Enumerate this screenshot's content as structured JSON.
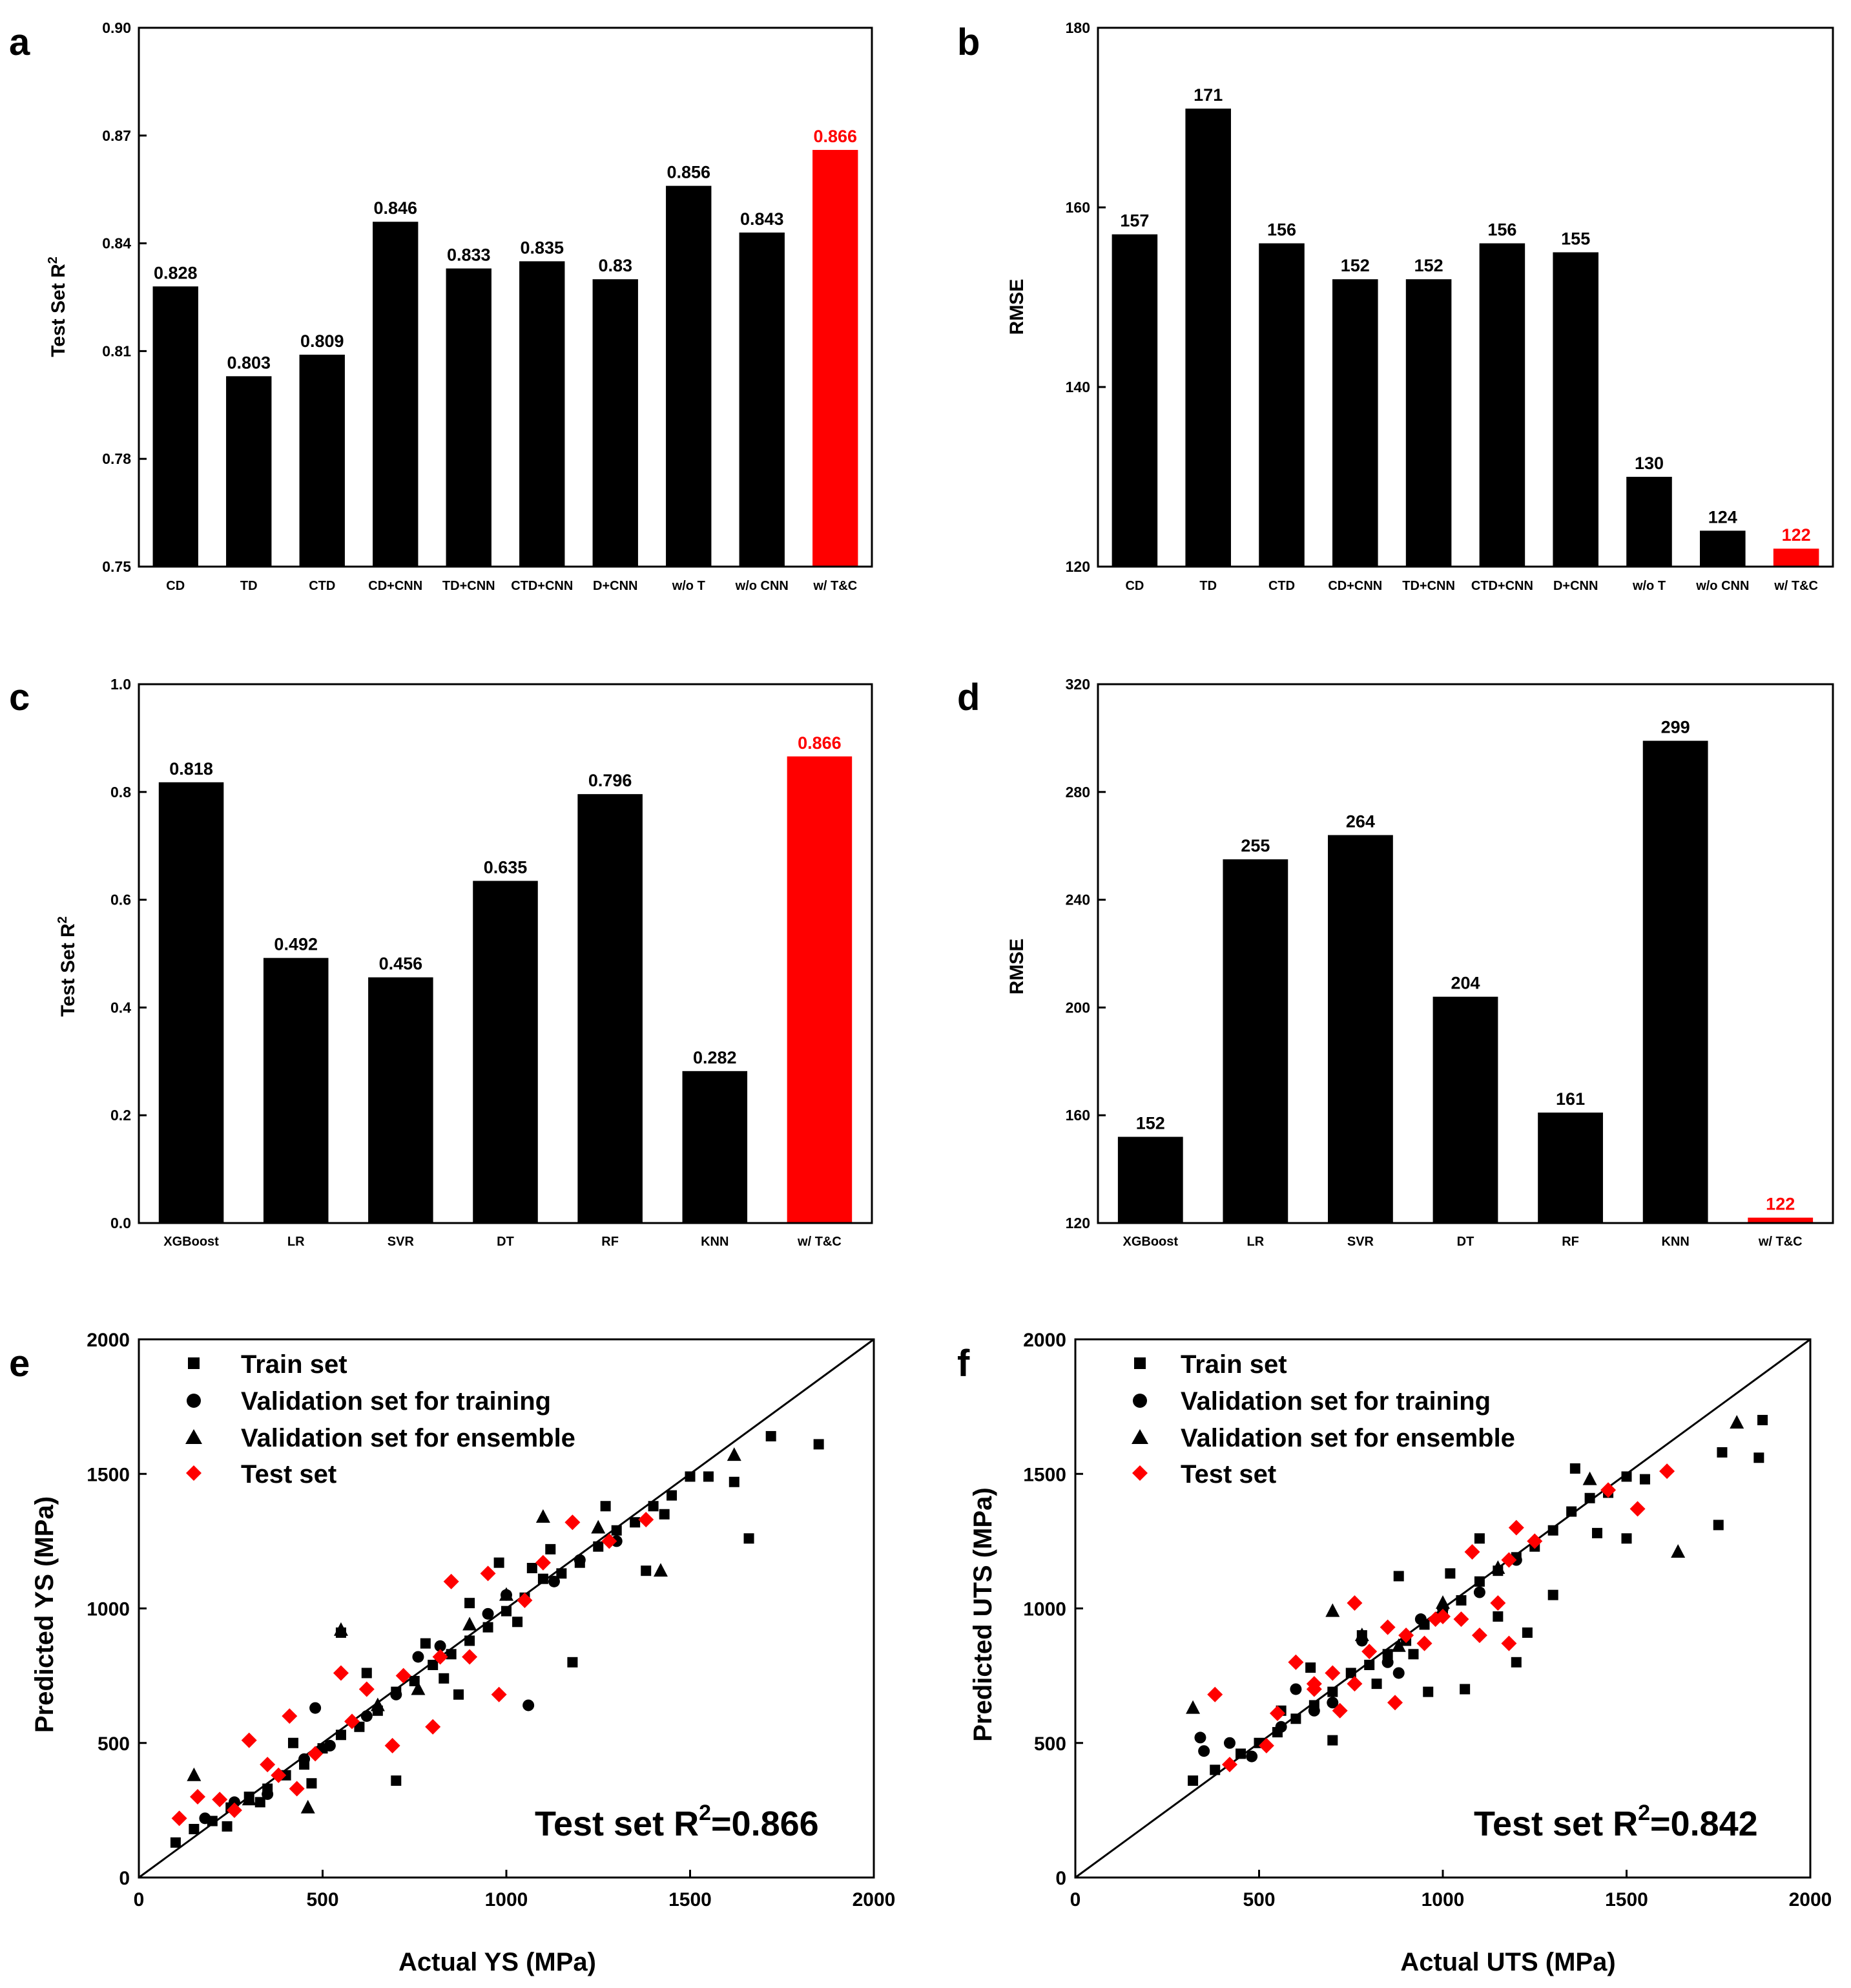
{
  "colors": {
    "bar": "#000000",
    "highlight": "#ff0000",
    "axis": "#000000",
    "test_marker": "#ff0000"
  },
  "chart_data": [
    {
      "id": "a",
      "panel_label": "a",
      "type": "bar",
      "ylabel": "Test Set R",
      "ylabel_sup": "2",
      "ylim": [
        0.75,
        0.9
      ],
      "yticks": [
        "0.75",
        "0.78",
        "0.81",
        "0.84",
        "0.87",
        "0.90"
      ],
      "categories": [
        "CD",
        "TD",
        "CTD",
        "CD+CNN",
        "TD+CNN",
        "CTD+CNN",
        "D+CNN",
        "w/o T",
        "w/o CNN",
        "w/ T&C"
      ],
      "values": [
        0.828,
        0.803,
        0.809,
        0.846,
        0.833,
        0.835,
        0.83,
        0.856,
        0.843,
        0.866
      ],
      "value_labels": [
        "0.828",
        "0.803",
        "0.809",
        "0.846",
        "0.833",
        "0.835",
        "0.83",
        "0.856",
        "0.843",
        "0.866"
      ],
      "highlight_index": 9
    },
    {
      "id": "b",
      "panel_label": "b",
      "type": "bar",
      "ylabel": "RMSE",
      "ylabel_sup": "",
      "ylim": [
        120,
        180
      ],
      "yticks": [
        "120",
        "140",
        "160",
        "180"
      ],
      "categories": [
        "CD",
        "TD",
        "CTD",
        "CD+CNN",
        "TD+CNN",
        "CTD+CNN",
        "D+CNN",
        "w/o T",
        "w/o CNN",
        "w/ T&C"
      ],
      "values": [
        157,
        171,
        156,
        152,
        152,
        156,
        155,
        130,
        124,
        122
      ],
      "value_labels": [
        "157",
        "171",
        "156",
        "152",
        "152",
        "156",
        "155",
        "130",
        "124",
        "122"
      ],
      "highlight_index": 9
    },
    {
      "id": "c",
      "panel_label": "c",
      "type": "bar",
      "ylabel": "Test Set R",
      "ylabel_sup": "2",
      "ylim": [
        0.0,
        1.0
      ],
      "yticks": [
        "0.0",
        "0.2",
        "0.4",
        "0.6",
        "0.8",
        "1.0"
      ],
      "categories": [
        "XGBoost",
        "LR",
        "SVR",
        "DT",
        "RF",
        "KNN",
        "w/ T&C"
      ],
      "values": [
        0.818,
        0.492,
        0.456,
        0.635,
        0.796,
        0.282,
        0.866
      ],
      "value_labels": [
        "0.818",
        "0.492",
        "0.456",
        "0.635",
        "0.796",
        "0.282",
        "0.866"
      ],
      "highlight_index": 6
    },
    {
      "id": "d",
      "panel_label": "d",
      "type": "bar",
      "ylabel": "RMSE",
      "ylabel_sup": "",
      "ylim": [
        120,
        320
      ],
      "yticks": [
        "120",
        "160",
        "200",
        "240",
        "280",
        "320"
      ],
      "categories": [
        "XGBoost",
        "LR",
        "SVR",
        "DT",
        "RF",
        "KNN",
        "w/ T&C"
      ],
      "values": [
        152,
        255,
        264,
        204,
        161,
        299,
        122
      ],
      "value_labels": [
        "152",
        "255",
        "264",
        "204",
        "161",
        "299",
        "122"
      ],
      "highlight_index": 6
    },
    {
      "id": "e",
      "panel_label": "e",
      "type": "scatter",
      "xlabel": "Actual YS (MPa)",
      "ylabel": "Predicted YS (MPa)",
      "xlim": [
        0,
        2000
      ],
      "ylim": [
        0,
        2000
      ],
      "xticks": [
        "0",
        "500",
        "1000",
        "1500",
        "2000"
      ],
      "yticks": [
        "0",
        "500",
        "1000",
        "1500",
        "2000"
      ],
      "annotation": "Test set R",
      "annotation_sup": "2",
      "annotation_value": "=0.866",
      "r2": 0.866,
      "legend": [
        "Train set",
        "Validation set for training",
        "Validation set for ensemble",
        "Test set"
      ],
      "series": [
        {
          "name": "Train set",
          "marker": "square",
          "points": [
            [
              100,
              130
            ],
            [
              150,
              180
            ],
            [
              200,
              210
            ],
            [
              250,
              260
            ],
            [
              300,
              300
            ],
            [
              350,
              330
            ],
            [
              400,
              380
            ],
            [
              450,
              420
            ],
            [
              500,
              480
            ],
            [
              550,
              530
            ],
            [
              600,
              560
            ],
            [
              650,
              620
            ],
            [
              700,
              690
            ],
            [
              750,
              730
            ],
            [
              800,
              790
            ],
            [
              850,
              830
            ],
            [
              900,
              880
            ],
            [
              950,
              930
            ],
            [
              1000,
              990
            ],
            [
              1050,
              1040
            ],
            [
              1100,
              1110
            ],
            [
              1150,
              1130
            ],
            [
              1200,
              1170
            ],
            [
              1250,
              1230
            ],
            [
              1300,
              1290
            ],
            [
              1350,
              1320
            ],
            [
              1400,
              1380
            ],
            [
              1450,
              1420
            ],
            [
              1500,
              1490
            ],
            [
              1550,
              1490
            ],
            [
              1620,
              1470
            ],
            [
              1660,
              1260
            ],
            [
              1720,
              1640
            ],
            [
              1850,
              1610
            ],
            [
              700,
              360
            ],
            [
              1180,
              800
            ],
            [
              550,
              910
            ],
            [
              1270,
              1380
            ],
            [
              1380,
              1140
            ],
            [
              980,
              1170
            ],
            [
              870,
              680
            ],
            [
              620,
              760
            ],
            [
              420,
              500
            ],
            [
              330,
              280
            ],
            [
              240,
              190
            ],
            [
              470,
              350
            ],
            [
              1430,
              1350
            ],
            [
              1120,
              1220
            ],
            [
              780,
              870
            ],
            [
              1030,
              950
            ],
            [
              830,
              740
            ],
            [
              900,
              1020
            ],
            [
              1070,
              1150
            ]
          ]
        },
        {
          "name": "Validation set for training",
          "marker": "circle",
          "points": [
            [
              180,
              220
            ],
            [
              260,
              280
            ],
            [
              350,
              310
            ],
            [
              450,
              440
            ],
            [
              520,
              490
            ],
            [
              620,
              600
            ],
            [
              700,
              680
            ],
            [
              820,
              860
            ],
            [
              950,
              980
            ],
            [
              1060,
              640
            ],
            [
              1130,
              1100
            ],
            [
              1300,
              1250
            ],
            [
              480,
              630
            ],
            [
              760,
              820
            ],
            [
              1000,
              1050
            ],
            [
              1200,
              1180
            ]
          ]
        },
        {
          "name": "Validation set for ensemble",
          "marker": "triangle",
          "points": [
            [
              150,
              380
            ],
            [
              300,
              290
            ],
            [
              460,
              260
            ],
            [
              550,
              920
            ],
            [
              760,
              700
            ],
            [
              1000,
              1050
            ],
            [
              1100,
              1340
            ],
            [
              1420,
              1140
            ],
            [
              1620,
              1570
            ],
            [
              1250,
              1300
            ],
            [
              650,
              640
            ],
            [
              900,
              940
            ]
          ]
        },
        {
          "name": "Test set",
          "marker": "diamond",
          "points": [
            [
              110,
              220
            ],
            [
              160,
              300
            ],
            [
              220,
              290
            ],
            [
              300,
              510
            ],
            [
              380,
              380
            ],
            [
              410,
              600
            ],
            [
              480,
              460
            ],
            [
              550,
              760
            ],
            [
              620,
              700
            ],
            [
              690,
              490
            ],
            [
              800,
              560
            ],
            [
              850,
              1100
            ],
            [
              900,
              820
            ],
            [
              950,
              1130
            ],
            [
              980,
              680
            ],
            [
              1050,
              1030
            ],
            [
              1180,
              1320
            ],
            [
              1280,
              1250
            ],
            [
              1380,
              1330
            ],
            [
              430,
              330
            ],
            [
              260,
              250
            ],
            [
              350,
              420
            ],
            [
              720,
              750
            ],
            [
              580,
              580
            ],
            [
              1100,
              1170
            ],
            [
              820,
              820
            ]
          ]
        }
      ]
    },
    {
      "id": "f",
      "panel_label": "f",
      "type": "scatter",
      "xlabel": "Actual UTS (MPa)",
      "ylabel": "Predicted UTS (MPa)",
      "xlim": [
        0,
        2000
      ],
      "ylim": [
        0,
        2000
      ],
      "xticks": [
        "0",
        "500",
        "1000",
        "1500",
        "2000"
      ],
      "yticks": [
        "0",
        "500",
        "1000",
        "1500",
        "2000"
      ],
      "annotation": "Test set R",
      "annotation_sup": "2",
      "annotation_value": "=0.842",
      "r2": 0.842,
      "legend": [
        "Train set",
        "Validation set for training",
        "Validation set for ensemble",
        "Test set"
      ],
      "series": [
        {
          "name": "Train set",
          "marker": "square",
          "points": [
            [
              320,
              360
            ],
            [
              380,
              400
            ],
            [
              450,
              460
            ],
            [
              500,
              500
            ],
            [
              550,
              540
            ],
            [
              600,
              590
            ],
            [
              650,
              640
            ],
            [
              700,
              690
            ],
            [
              750,
              760
            ],
            [
              800,
              790
            ],
            [
              850,
              830
            ],
            [
              900,
              880
            ],
            [
              950,
              940
            ],
            [
              1000,
              990
            ],
            [
              1050,
              1030
            ],
            [
              1100,
              1100
            ],
            [
              1150,
              1140
            ],
            [
              1200,
              1190
            ],
            [
              1250,
              1230
            ],
            [
              1300,
              1290
            ],
            [
              1350,
              1360
            ],
            [
              1400,
              1410
            ],
            [
              1450,
              1430
            ],
            [
              1500,
              1490
            ],
            [
              1550,
              1480
            ],
            [
              1750,
              1310
            ],
            [
              1760,
              1580
            ],
            [
              1860,
              1560
            ],
            [
              1870,
              1700
            ],
            [
              1360,
              1520
            ],
            [
              1200,
              800
            ],
            [
              1060,
              700
            ],
            [
              880,
              1120
            ],
            [
              1230,
              910
            ],
            [
              960,
              690
            ],
            [
              1100,
              1260
            ],
            [
              1500,
              1260
            ],
            [
              1300,
              1050
            ],
            [
              700,
              510
            ],
            [
              640,
              780
            ],
            [
              780,
              900
            ],
            [
              920,
              830
            ],
            [
              1020,
              1130
            ],
            [
              1150,
              970
            ],
            [
              1420,
              1280
            ],
            [
              560,
              620
            ],
            [
              820,
              720
            ]
          ]
        },
        {
          "name": "Validation set for training",
          "marker": "circle",
          "points": [
            [
              340,
              520
            ],
            [
              350,
              470
            ],
            [
              420,
              500
            ],
            [
              480,
              450
            ],
            [
              560,
              560
            ],
            [
              650,
              620
            ],
            [
              700,
              650
            ],
            [
              780,
              880
            ],
            [
              850,
              800
            ],
            [
              940,
              960
            ],
            [
              1000,
              1000
            ],
            [
              1100,
              1060
            ],
            [
              1200,
              1180
            ],
            [
              600,
              700
            ],
            [
              880,
              760
            ]
          ]
        },
        {
          "name": "Validation set for ensemble",
          "marker": "triangle",
          "points": [
            [
              320,
              630
            ],
            [
              700,
              990
            ],
            [
              780,
              900
            ],
            [
              1000,
              1020
            ],
            [
              1400,
              1480
            ],
            [
              1640,
              1210
            ],
            [
              1800,
              1690
            ],
            [
              880,
              860
            ],
            [
              1150,
              1150
            ]
          ]
        },
        {
          "name": "Test set",
          "marker": "diamond",
          "points": [
            [
              380,
              680
            ],
            [
              420,
              420
            ],
            [
              520,
              490
            ],
            [
              550,
              610
            ],
            [
              600,
              800
            ],
            [
              650,
              700
            ],
            [
              700,
              760
            ],
            [
              720,
              620
            ],
            [
              760,
              720
            ],
            [
              800,
              840
            ],
            [
              850,
              930
            ],
            [
              870,
              650
            ],
            [
              900,
              900
            ],
            [
              950,
              870
            ],
            [
              1000,
              970
            ],
            [
              1050,
              960
            ],
            [
              1080,
              1210
            ],
            [
              1100,
              900
            ],
            [
              1150,
              1020
            ],
            [
              1180,
              870
            ],
            [
              1200,
              1300
            ],
            [
              1250,
              1250
            ],
            [
              1450,
              1440
            ],
            [
              1530,
              1370
            ],
            [
              1610,
              1510
            ],
            [
              650,
              720
            ],
            [
              760,
              1020
            ],
            [
              980,
              960
            ],
            [
              1180,
              1180
            ]
          ]
        }
      ]
    }
  ]
}
